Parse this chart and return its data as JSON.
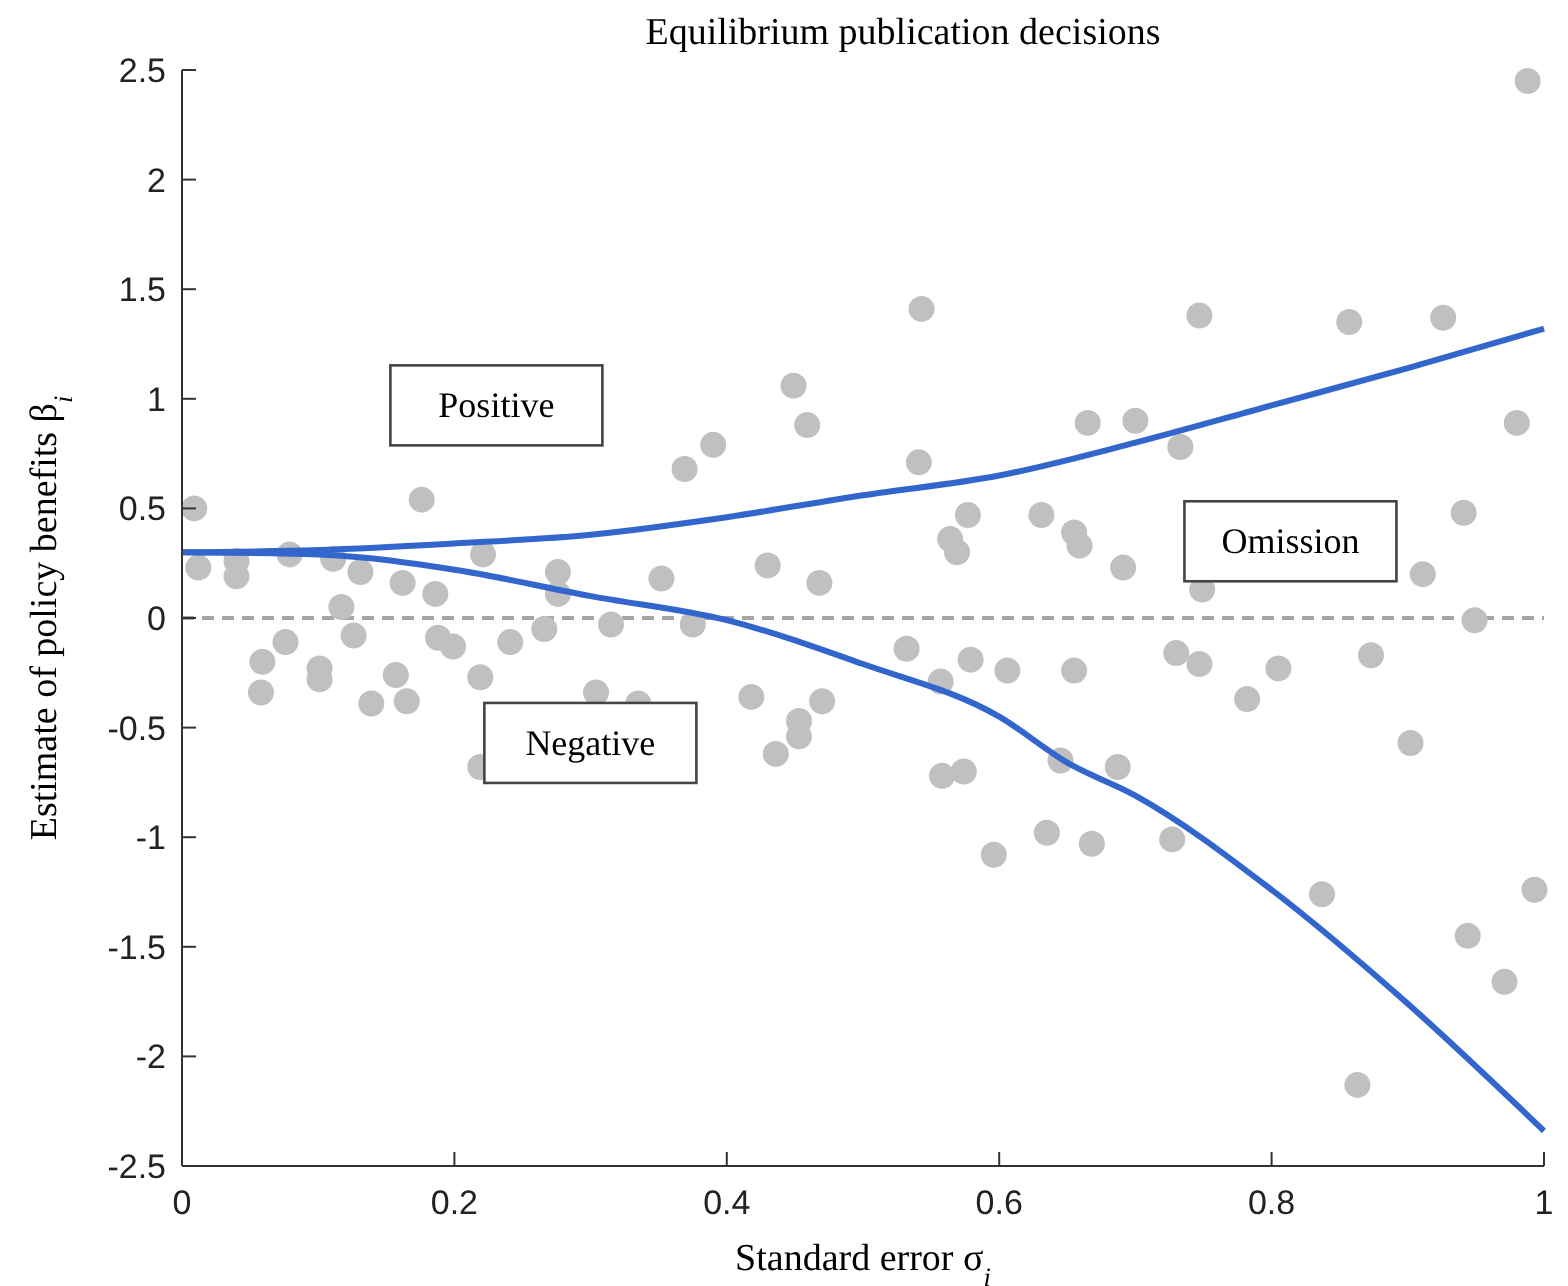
{
  "chart_data": {
    "type": "scatter",
    "title": "Equilibrium publication decisions",
    "xlabel": "Standard error σ$_{i}$",
    "ylabel": "Estimate of policy benefits β$_{i}$",
    "xlim": [
      0,
      1
    ],
    "xticks": [
      0,
      0.2,
      0.4,
      0.6,
      0.8,
      1
    ],
    "ylim": [
      -2.5,
      2.5
    ],
    "yticks": [
      -2.5,
      -2,
      -1.5,
      -1,
      -0.5,
      0,
      0.5,
      1,
      1.5,
      2,
      2.5
    ],
    "annotations": [
      "Positive",
      "Negative",
      "Omission"
    ],
    "ref_lines": [
      {
        "axis": "y",
        "value": 0,
        "color": "#a6a6a6",
        "line_style": "dashed"
      }
    ],
    "series": [
      {
        "marker": "circle",
        "color": "#c0c0c0",
        "x": [
          0.009,
          0.012,
          0.04,
          0.04,
          0.079,
          0.111,
          0.131,
          0.162,
          0.186,
          0.176,
          0.221,
          0.276,
          0.276,
          0.117,
          0.059,
          0.076,
          0.058,
          0.101,
          0.101,
          0.126,
          0.139,
          0.157,
          0.165,
          0.188,
          0.199,
          0.219,
          0.241,
          0.266,
          0.304,
          0.315,
          0.219,
          0.543,
          0.449,
          0.459,
          0.39,
          0.369,
          0.541,
          0.577,
          0.631,
          0.564,
          0.569,
          0.352,
          0.43,
          0.468,
          0.375,
          0.532,
          0.579,
          0.606,
          0.557,
          0.335,
          0.418,
          0.47,
          0.453,
          0.453,
          0.436,
          0.558,
          0.574,
          0.645,
          0.635,
          0.596,
          0.988,
          0.747,
          0.857,
          0.926,
          0.665,
          0.7,
          0.733,
          0.98,
          0.655,
          0.659,
          0.691,
          0.941,
          0.749,
          0.911,
          0.949,
          0.655,
          0.73,
          0.747,
          0.805,
          0.782,
          0.873,
          0.902,
          0.687,
          0.668,
          0.727,
          0.837,
          0.993,
          0.944,
          0.971,
          0.863
        ],
        "values": [
          0.5,
          0.23,
          0.26,
          0.19,
          0.29,
          0.27,
          0.21,
          0.16,
          0.11,
          0.54,
          0.29,
          0.21,
          0.11,
          0.05,
          -0.2,
          -0.11,
          -0.34,
          -0.23,
          -0.28,
          -0.08,
          -0.39,
          -0.26,
          -0.38,
          -0.09,
          -0.13,
          -0.27,
          -0.11,
          -0.05,
          -0.34,
          -0.03,
          -0.68,
          1.41,
          1.06,
          0.88,
          0.79,
          0.68,
          0.71,
          0.47,
          0.47,
          0.36,
          0.3,
          0.18,
          0.24,
          0.16,
          -0.03,
          -0.14,
          -0.19,
          -0.24,
          -0.29,
          -0.39,
          -0.36,
          -0.38,
          -0.47,
          -0.54,
          -0.62,
          -0.72,
          -0.7,
          -0.65,
          -0.98,
          -1.08,
          2.45,
          1.38,
          1.35,
          1.37,
          0.89,
          0.9,
          0.78,
          0.89,
          0.39,
          0.33,
          0.23,
          0.48,
          0.13,
          0.2,
          -0.01,
          -0.24,
          -0.16,
          -0.21,
          -0.23,
          -0.37,
          -0.17,
          -0.57,
          -0.68,
          -1.03,
          -1.01,
          -1.26,
          -1.24,
          -1.45,
          -1.66,
          -2.13
        ]
      },
      {
        "type": "line",
        "color": "#3366cc",
        "x": [
          0,
          0.1,
          0.2,
          0.3,
          0.4,
          0.5,
          0.6,
          0.7,
          0.8,
          0.9,
          1
        ],
        "values": [
          0.3,
          0.31,
          0.34,
          0.38,
          0.46,
          0.56,
          0.65,
          0.8,
          0.97,
          1.14,
          1.32
        ]
      },
      {
        "type": "line",
        "color": "#3366cc",
        "x": [
          0,
          0.1,
          0.2,
          0.3,
          0.4,
          0.5,
          0.6,
          0.65,
          0.7,
          0.8,
          0.9,
          1
        ],
        "values": [
          0.3,
          0.29,
          0.22,
          0.1,
          -0.01,
          -0.21,
          -0.45,
          -0.66,
          -0.81,
          -1.24,
          -1.76,
          -2.34
        ]
      }
    ]
  }
}
